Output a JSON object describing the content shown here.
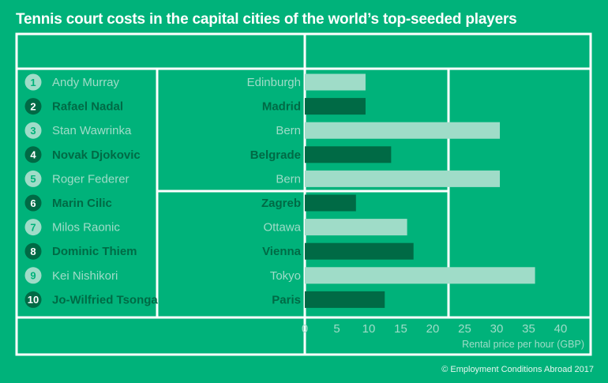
{
  "title": "Tennis court costs in the capital cities of the world’s top-seeded players",
  "credit": "© Employment Conditions Abroad 2017",
  "colors": {
    "background": "#00b27a",
    "light_bar": "#9fdcc8",
    "dark_bar": "#006a45",
    "court_line": "#ffffff"
  },
  "chart_data": {
    "type": "bar",
    "orientation": "horizontal",
    "categories": [
      "Edinburgh",
      "Madrid",
      "Bern",
      "Belgrade",
      "Bern",
      "Zagreb",
      "Ottawa",
      "Vienna",
      "Tokyo",
      "Paris"
    ],
    "players": [
      "Andy Murray",
      "Rafael Nadal",
      "Stan Wawrinka",
      "Novak Djokovic",
      "Roger Federer",
      "Marin Cilic",
      "Milos Raonic",
      "Dominic Thiem",
      "Kei Nishikori",
      "Jo-Wilfried Tsonga"
    ],
    "ranks": [
      "1",
      "2",
      "3",
      "4",
      "5",
      "6",
      "7",
      "8",
      "9",
      "10"
    ],
    "values": [
      9.5,
      9.5,
      30.5,
      13.5,
      30.5,
      8,
      16,
      17,
      36,
      12.5
    ],
    "xlabel": "Rental price per hour (GBP)",
    "ylabel": "",
    "xlim": [
      0,
      40
    ],
    "xticks": [
      "0",
      "5",
      "10",
      "15",
      "20",
      "25",
      "30",
      "35",
      "40"
    ]
  }
}
